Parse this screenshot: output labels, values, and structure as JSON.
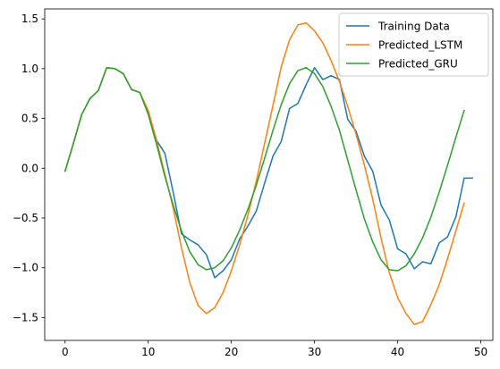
{
  "chart_data": {
    "type": "line",
    "title": "",
    "xlabel": "",
    "ylabel": "",
    "xlim": [
      -2.45,
      51.45
    ],
    "ylim": [
      -1.73,
      1.6
    ],
    "xticks": [
      0,
      10,
      20,
      30,
      40,
      50
    ],
    "yticks": [
      -1.5,
      -1.0,
      -0.5,
      0.0,
      0.5,
      1.0,
      1.5
    ],
    "xtick_labels": [
      "0",
      "10",
      "20",
      "30",
      "40",
      "50"
    ],
    "ytick_labels": [
      "−1.5",
      "−1.0",
      "−0.5",
      "0.0",
      "0.5",
      "1.0",
      "1.5"
    ],
    "grid": false,
    "legend_position": "top-right",
    "series": [
      {
        "name": "Training Data",
        "color": "#1f77b4",
        "x": [
          0,
          1,
          2,
          3,
          4,
          5,
          6,
          7,
          8,
          9,
          10,
          11,
          12,
          13,
          14,
          15,
          16,
          17,
          18,
          19,
          20,
          21,
          22,
          23,
          24,
          25,
          26,
          27,
          28,
          29,
          30,
          31,
          32,
          33,
          34,
          35,
          36,
          37,
          38,
          39,
          40,
          41,
          42,
          43,
          44,
          45,
          46,
          47,
          48,
          49
        ],
        "y": [
          -0.03,
          0.25,
          0.54,
          0.7,
          0.78,
          1.01,
          1.0,
          0.95,
          0.79,
          0.76,
          0.55,
          0.28,
          0.15,
          -0.24,
          -0.66,
          -0.72,
          -0.77,
          -0.87,
          -1.1,
          -1.03,
          -0.92,
          -0.71,
          -0.58,
          -0.43,
          -0.15,
          0.12,
          0.27,
          0.6,
          0.65,
          0.84,
          1.01,
          0.89,
          0.93,
          0.89,
          0.49,
          0.37,
          0.12,
          -0.03,
          -0.37,
          -0.52,
          -0.81,
          -0.86,
          -1.01,
          -0.94,
          -0.96,
          -0.75,
          -0.69,
          -0.49,
          -0.1,
          -0.1
        ]
      },
      {
        "name": "Predicted_LSTM",
        "color": "#ff7f0e",
        "x": [
          0,
          1,
          2,
          3,
          4,
          5,
          6,
          7,
          8,
          9,
          10,
          11,
          12,
          13,
          14,
          15,
          16,
          17,
          18,
          19,
          20,
          21,
          22,
          23,
          24,
          25,
          26,
          27,
          28,
          29,
          30,
          31,
          32,
          33,
          34,
          35,
          36,
          37,
          38,
          39,
          40,
          41,
          42,
          43,
          44,
          45,
          46,
          47,
          48
        ],
        "y": [
          -0.03,
          0.25,
          0.54,
          0.7,
          0.78,
          1.01,
          1.0,
          0.95,
          0.79,
          0.76,
          0.58,
          0.28,
          -0.06,
          -0.4,
          -0.8,
          -1.15,
          -1.38,
          -1.46,
          -1.4,
          -1.25,
          -1.03,
          -0.77,
          -0.47,
          -0.13,
          0.25,
          0.63,
          1.02,
          1.29,
          1.44,
          1.46,
          1.38,
          1.26,
          1.08,
          0.87,
          0.62,
          0.34,
          0.03,
          -0.31,
          -0.7,
          -1.05,
          -1.3,
          -1.46,
          -1.57,
          -1.54,
          -1.37,
          -1.17,
          -0.91,
          -0.63,
          -0.35
        ]
      },
      {
        "name": "Predicted_GRU",
        "color": "#2ca02c",
        "x": [
          0,
          1,
          2,
          3,
          4,
          5,
          6,
          7,
          8,
          9,
          10,
          11,
          12,
          13,
          14,
          15,
          16,
          17,
          18,
          19,
          20,
          21,
          22,
          23,
          24,
          25,
          26,
          27,
          28,
          29,
          30,
          31,
          32,
          33,
          34,
          35,
          36,
          37,
          38,
          39,
          40,
          41,
          42,
          43,
          44,
          45,
          46,
          47,
          48
        ],
        "y": [
          -0.03,
          0.25,
          0.54,
          0.7,
          0.78,
          1.01,
          1.0,
          0.95,
          0.79,
          0.76,
          0.54,
          0.24,
          -0.08,
          -0.37,
          -0.63,
          -0.84,
          -0.97,
          -1.02,
          -1.0,
          -0.93,
          -0.8,
          -0.62,
          -0.41,
          -0.17,
          0.1,
          0.38,
          0.64,
          0.85,
          0.98,
          1.01,
          0.95,
          0.82,
          0.62,
          0.38,
          0.08,
          -0.22,
          -0.51,
          -0.74,
          -0.92,
          -1.02,
          -1.03,
          -0.98,
          -0.86,
          -0.7,
          -0.49,
          -0.24,
          0.03,
          0.31,
          0.58
        ]
      }
    ]
  }
}
